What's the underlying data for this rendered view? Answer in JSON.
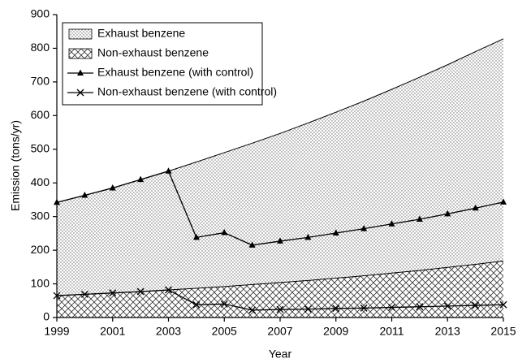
{
  "chart_data": {
    "type": "area",
    "xlabel": "Year",
    "ylabel": "Emission (tons/yr)",
    "x": [
      1999,
      2000,
      2001,
      2002,
      2003,
      2004,
      2005,
      2006,
      2007,
      2008,
      2009,
      2010,
      2011,
      2012,
      2013,
      2014,
      2015
    ],
    "xlim": [
      1999,
      2015
    ],
    "xticks": [
      1999,
      2001,
      2003,
      2005,
      2007,
      2009,
      2011,
      2013,
      2015
    ],
    "ylim": [
      0,
      900
    ],
    "yticks": [
      0,
      100,
      200,
      300,
      400,
      500,
      600,
      700,
      800,
      900
    ],
    "legend": "upper left",
    "series": [
      {
        "name": "Exhaust benzene",
        "fill": "dots",
        "color": "#000000",
        "values": [
          342,
          363,
          385,
          410,
          435,
          462,
          490,
          518,
          547,
          578,
          610,
          643,
          678,
          714,
          751,
          790,
          828
        ]
      },
      {
        "name": "Non-exhaust benzene",
        "fill": "crosshatch",
        "color": "#000000",
        "values": [
          65,
          69,
          73,
          77,
          82,
          87,
          92,
          98,
          104,
          110,
          117,
          124,
          132,
          140,
          149,
          158,
          168
        ]
      },
      {
        "name": "Exhaust benzene (with control)",
        "marker": "triangle",
        "color": "#000000",
        "values": [
          342,
          363,
          385,
          410,
          435,
          238,
          252,
          215,
          227,
          238,
          251,
          264,
          278,
          292,
          308,
          325,
          343
        ]
      },
      {
        "name": "Non-exhaust benzene (with control)",
        "marker": "x",
        "color": "#000000",
        "values": [
          65,
          69,
          73,
          77,
          82,
          38,
          40,
          22,
          24,
          25,
          27,
          28,
          30,
          32,
          34,
          36,
          38
        ]
      }
    ]
  }
}
